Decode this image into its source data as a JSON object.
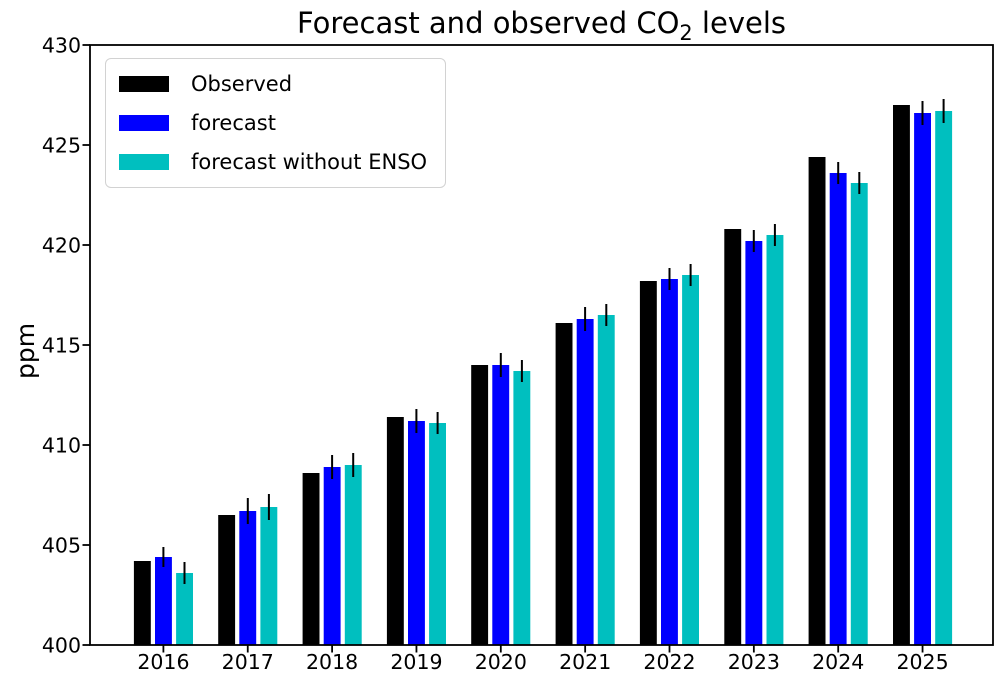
{
  "figure": {
    "title": "Forecast and observed CO₂ levels",
    "title_parts": {
      "pre": "Forecast and observed CO",
      "sub": "2",
      "post": " levels"
    }
  },
  "chart_data": {
    "type": "bar",
    "title": "Forecast and observed CO₂ levels",
    "xlabel": "",
    "ylabel": "ppm",
    "ylim": [
      400,
      430
    ],
    "yticks": [
      400,
      405,
      410,
      415,
      420,
      425,
      430
    ],
    "grid": false,
    "legend_position": "upper left",
    "background_color": "#ffffff",
    "axis_color": "#000000",
    "error_bar_color": "#000000",
    "categories": [
      "2016",
      "2017",
      "2018",
      "2019",
      "2020",
      "2021",
      "2022",
      "2023",
      "2024",
      "2025"
    ],
    "series": [
      {
        "name": "Observed",
        "color": "#000000",
        "values": [
          404.2,
          406.5,
          408.6,
          411.4,
          414.0,
          416.1,
          418.2,
          420.8,
          424.4,
          427.0
        ]
      },
      {
        "name": "forecast",
        "color": "#0000ff",
        "values": [
          404.4,
          406.7,
          408.9,
          411.2,
          414.0,
          416.3,
          418.3,
          420.2,
          423.6,
          426.6
        ],
        "errors": [
          0.5,
          0.65,
          0.6,
          0.6,
          0.6,
          0.6,
          0.55,
          0.55,
          0.55,
          0.6
        ]
      },
      {
        "name": "forecast without ENSO",
        "color": "#00bfbf",
        "values": [
          403.6,
          406.9,
          409.0,
          411.1,
          413.7,
          416.5,
          418.5,
          420.5,
          423.1,
          426.7
        ],
        "errors": [
          0.55,
          0.65,
          0.6,
          0.55,
          0.55,
          0.55,
          0.55,
          0.55,
          0.55,
          0.6
        ]
      }
    ]
  }
}
